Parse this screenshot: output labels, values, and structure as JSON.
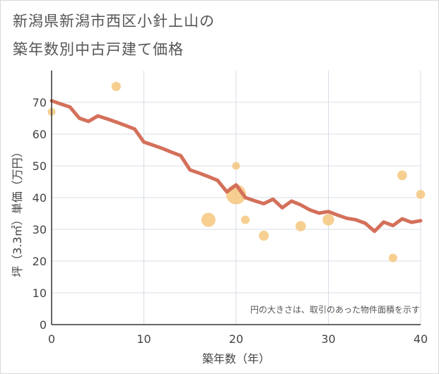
{
  "title_line1": "新潟県新潟市西区小針上山の",
  "title_line2": "築年数別中古戸建て価格",
  "chart_data": {
    "type": "scatter+line",
    "xlabel": "築年数（年）",
    "ylabel": "坪（3.3㎡）単価（万円）",
    "xlim": [
      0,
      40
    ],
    "ylim": [
      0,
      80
    ],
    "xticks": [
      0,
      10,
      20,
      30,
      40
    ],
    "yticks": [
      0,
      10,
      20,
      30,
      40,
      50,
      60,
      70
    ],
    "grid": true,
    "note": "円の大きさは、取引のあった物件面積を示す",
    "colors": {
      "line": "#d4705a",
      "bubble": "#f5c77e"
    },
    "line": {
      "x": [
        0,
        1,
        2,
        3,
        4,
        5,
        6,
        7,
        8,
        9,
        10,
        11,
        12,
        13,
        14,
        15,
        16,
        17,
        18,
        19,
        20,
        21,
        22,
        23,
        24,
        25,
        26,
        27,
        28,
        29,
        30,
        31,
        32,
        33,
        34,
        35,
        36,
        37,
        38,
        39,
        40
      ],
      "y": [
        70.5,
        69.5,
        68.5,
        65,
        64,
        65.7,
        64.8,
        63.8,
        62.7,
        61.6,
        57.5,
        56.5,
        55.5,
        54.3,
        53.2,
        48.7,
        47.7,
        46.6,
        45.4,
        41.8,
        44,
        40,
        39,
        38.1,
        39.5,
        36.8,
        38.9,
        37.7,
        36.1,
        35.1,
        35.6,
        34.5,
        33.5,
        33,
        31.9,
        29.4,
        32.3,
        31.2,
        33.3,
        32.2,
        32.7
      ]
    },
    "bubbles": [
      {
        "x": 0,
        "y": 67,
        "size": 1
      },
      {
        "x": 7,
        "y": 75,
        "size": 1.3
      },
      {
        "x": 17,
        "y": 33,
        "size": 3
      },
      {
        "x": 20,
        "y": 50,
        "size": 1
      },
      {
        "x": 20,
        "y": 41,
        "size": 6
      },
      {
        "x": 21,
        "y": 33,
        "size": 1.1
      },
      {
        "x": 23,
        "y": 28,
        "size": 1.5
      },
      {
        "x": 27,
        "y": 31,
        "size": 1.6
      },
      {
        "x": 30,
        "y": 33,
        "size": 2
      },
      {
        "x": 37,
        "y": 21,
        "size": 1.1
      },
      {
        "x": 38,
        "y": 47,
        "size": 1.4
      },
      {
        "x": 40,
        "y": 41,
        "size": 1.2
      }
    ]
  }
}
